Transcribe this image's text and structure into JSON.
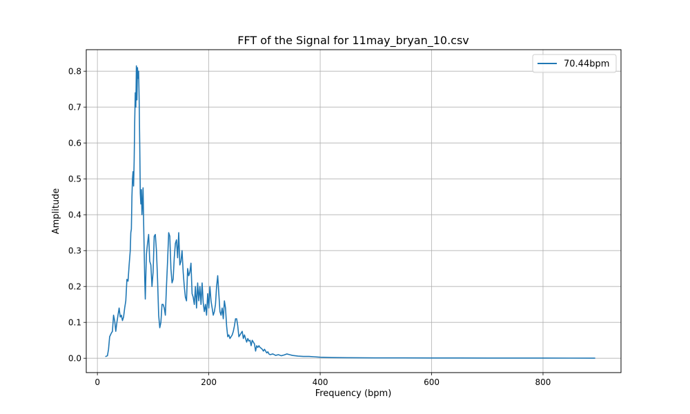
{
  "chart_data": {
    "type": "line",
    "title": "FFT of the Signal for 11may_bryan_10.csv",
    "xlabel": "Frequency (bpm)",
    "ylabel": "Amplitude",
    "xlim": [
      -20,
      940
    ],
    "ylim": [
      -0.04,
      0.86
    ],
    "x_ticks": [
      0,
      200,
      400,
      600,
      800
    ],
    "y_ticks": [
      0.0,
      0.1,
      0.2,
      0.3,
      0.4,
      0.5,
      0.6,
      0.7,
      0.8
    ],
    "grid": true,
    "legend_position": "top-right",
    "series": [
      {
        "name": "70.44bpm",
        "color": "#1f77b4",
        "points": [
          [
            15,
            0.005
          ],
          [
            18,
            0.007
          ],
          [
            20,
            0.025
          ],
          [
            22,
            0.06
          ],
          [
            25,
            0.07
          ],
          [
            27,
            0.075
          ],
          [
            29,
            0.12
          ],
          [
            31,
            0.105
          ],
          [
            33,
            0.075
          ],
          [
            35,
            0.1
          ],
          [
            37,
            0.12
          ],
          [
            39,
            0.14
          ],
          [
            41,
            0.115
          ],
          [
            43,
            0.12
          ],
          [
            45,
            0.105
          ],
          [
            47,
            0.115
          ],
          [
            49,
            0.14
          ],
          [
            51,
            0.16
          ],
          [
            53,
            0.22
          ],
          [
            55,
            0.215
          ],
          [
            57,
            0.26
          ],
          [
            59,
            0.3
          ],
          [
            60,
            0.35
          ],
          [
            61,
            0.36
          ],
          [
            62,
            0.45
          ],
          [
            63,
            0.5
          ],
          [
            64,
            0.52
          ],
          [
            65,
            0.48
          ],
          [
            66,
            0.55
          ],
          [
            67,
            0.66
          ],
          [
            68,
            0.74
          ],
          [
            69,
            0.7
          ],
          [
            70,
            0.815
          ],
          [
            71,
            0.72
          ],
          [
            72,
            0.81
          ],
          [
            73,
            0.78
          ],
          [
            74,
            0.8
          ],
          [
            75,
            0.72
          ],
          [
            76,
            0.6
          ],
          [
            77,
            0.46
          ],
          [
            78,
            0.43
          ],
          [
            79,
            0.47
          ],
          [
            80,
            0.4
          ],
          [
            81,
            0.43
          ],
          [
            82,
            0.475
          ],
          [
            83,
            0.38
          ],
          [
            84,
            0.3
          ],
          [
            85,
            0.22
          ],
          [
            86,
            0.165
          ],
          [
            87,
            0.23
          ],
          [
            88,
            0.29
          ],
          [
            90,
            0.32
          ],
          [
            92,
            0.345
          ],
          [
            94,
            0.27
          ],
          [
            96,
            0.26
          ],
          [
            98,
            0.2
          ],
          [
            100,
            0.24
          ],
          [
            102,
            0.34
          ],
          [
            104,
            0.345
          ],
          [
            106,
            0.3
          ],
          [
            108,
            0.22
          ],
          [
            110,
            0.12
          ],
          [
            112,
            0.085
          ],
          [
            114,
            0.1
          ],
          [
            116,
            0.15
          ],
          [
            118,
            0.15
          ],
          [
            120,
            0.14
          ],
          [
            122,
            0.12
          ],
          [
            124,
            0.2
          ],
          [
            126,
            0.27
          ],
          [
            128,
            0.35
          ],
          [
            130,
            0.34
          ],
          [
            132,
            0.25
          ],
          [
            134,
            0.21
          ],
          [
            136,
            0.22
          ],
          [
            138,
            0.28
          ],
          [
            140,
            0.32
          ],
          [
            142,
            0.33
          ],
          [
            144,
            0.28
          ],
          [
            146,
            0.35
          ],
          [
            148,
            0.26
          ],
          [
            150,
            0.27
          ],
          [
            152,
            0.3
          ],
          [
            154,
            0.24
          ],
          [
            156,
            0.2
          ],
          [
            158,
            0.17
          ],
          [
            160,
            0.16
          ],
          [
            162,
            0.25
          ],
          [
            164,
            0.23
          ],
          [
            166,
            0.24
          ],
          [
            168,
            0.265
          ],
          [
            170,
            0.18
          ],
          [
            172,
            0.17
          ],
          [
            174,
            0.15
          ],
          [
            176,
            0.2
          ],
          [
            178,
            0.14
          ],
          [
            180,
            0.21
          ],
          [
            182,
            0.16
          ],
          [
            184,
            0.2
          ],
          [
            186,
            0.15
          ],
          [
            188,
            0.21
          ],
          [
            190,
            0.155
          ],
          [
            192,
            0.13
          ],
          [
            194,
            0.15
          ],
          [
            196,
            0.12
          ],
          [
            198,
            0.18
          ],
          [
            200,
            0.14
          ],
          [
            202,
            0.2
          ],
          [
            204,
            0.16
          ],
          [
            206,
            0.14
          ],
          [
            208,
            0.12
          ],
          [
            210,
            0.13
          ],
          [
            212,
            0.15
          ],
          [
            214,
            0.2
          ],
          [
            216,
            0.23
          ],
          [
            218,
            0.18
          ],
          [
            220,
            0.13
          ],
          [
            222,
            0.12
          ],
          [
            224,
            0.14
          ],
          [
            226,
            0.11
          ],
          [
            228,
            0.16
          ],
          [
            230,
            0.14
          ],
          [
            232,
            0.09
          ],
          [
            234,
            0.06
          ],
          [
            236,
            0.065
          ],
          [
            238,
            0.055
          ],
          [
            240,
            0.06
          ],
          [
            242,
            0.065
          ],
          [
            244,
            0.075
          ],
          [
            246,
            0.09
          ],
          [
            248,
            0.11
          ],
          [
            250,
            0.11
          ],
          [
            252,
            0.09
          ],
          [
            254,
            0.06
          ],
          [
            256,
            0.065
          ],
          [
            258,
            0.07
          ],
          [
            260,
            0.075
          ],
          [
            262,
            0.055
          ],
          [
            264,
            0.065
          ],
          [
            266,
            0.055
          ],
          [
            268,
            0.045
          ],
          [
            270,
            0.055
          ],
          [
            272,
            0.048
          ],
          [
            274,
            0.05
          ],
          [
            276,
            0.035
          ],
          [
            278,
            0.05
          ],
          [
            280,
            0.045
          ],
          [
            282,
            0.04
          ],
          [
            284,
            0.02
          ],
          [
            286,
            0.035
          ],
          [
            288,
            0.03
          ],
          [
            290,
            0.035
          ],
          [
            292,
            0.03
          ],
          [
            294,
            0.028
          ],
          [
            296,
            0.025
          ],
          [
            298,
            0.02
          ],
          [
            300,
            0.025
          ],
          [
            302,
            0.02
          ],
          [
            304,
            0.015
          ],
          [
            306,
            0.018
          ],
          [
            308,
            0.012
          ],
          [
            310,
            0.01
          ],
          [
            315,
            0.012
          ],
          [
            320,
            0.008
          ],
          [
            325,
            0.01
          ],
          [
            330,
            0.007
          ],
          [
            335,
            0.009
          ],
          [
            340,
            0.012
          ],
          [
            345,
            0.01
          ],
          [
            350,
            0.008
          ],
          [
            355,
            0.007
          ],
          [
            360,
            0.006
          ],
          [
            370,
            0.005
          ],
          [
            380,
            0.005
          ],
          [
            390,
            0.004
          ],
          [
            400,
            0.003
          ],
          [
            420,
            0.002
          ],
          [
            450,
            0.0015
          ],
          [
            500,
            0.001
          ],
          [
            550,
            0.001
          ],
          [
            600,
            0.0008
          ],
          [
            650,
            0.0007
          ],
          [
            700,
            0.0006
          ],
          [
            750,
            0.0005
          ],
          [
            800,
            0.0005
          ],
          [
            850,
            0.0004
          ],
          [
            893,
            0.0003
          ]
        ]
      }
    ]
  }
}
